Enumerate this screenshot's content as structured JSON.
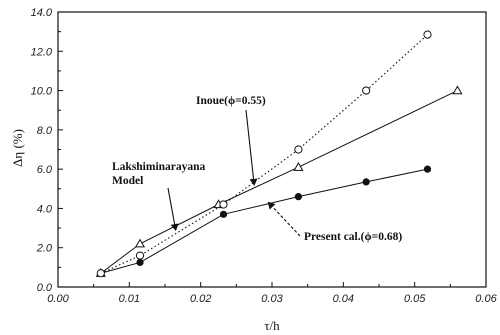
{
  "chart_data": {
    "type": "scatter",
    "xlabel": "τ/h",
    "ylabel": "Δη (%)",
    "xlim": [
      0.0,
      0.06
    ],
    "ylim": [
      0.0,
      14.0
    ],
    "x_ticks": [
      0.0,
      0.01,
      0.02,
      0.03,
      0.04,
      0.05,
      0.06
    ],
    "x_tick_labels": [
      "0.00",
      "0.01",
      "0.02",
      "0.03",
      "0.04",
      "0.05",
      "0.06"
    ],
    "y_ticks": [
      0,
      2,
      4,
      6,
      8,
      10,
      12,
      14
    ],
    "y_tick_labels": [
      "0.0",
      "2.0",
      "4.0",
      "6.0",
      "8.0",
      "10.0",
      "12.0",
      "14.0"
    ],
    "grid": false,
    "legend": "none",
    "series": [
      {
        "marker": "filled-circle",
        "line": "solid",
        "color": "#111111",
        "points": [
          [
            0.006,
            0.7
          ],
          [
            0.0115,
            1.25
          ],
          [
            0.0232,
            3.7
          ],
          [
            0.0337,
            4.6
          ],
          [
            0.0432,
            5.35
          ],
          [
            0.0518,
            6.0
          ]
        ]
      },
      {
        "marker": "open-triangle",
        "line": "solid",
        "color": "#111111",
        "points": [
          [
            0.006,
            0.7
          ],
          [
            0.0115,
            2.2
          ],
          [
            0.0225,
            4.2
          ],
          [
            0.0337,
            6.1
          ],
          [
            0.056,
            10.0
          ]
        ]
      },
      {
        "marker": "open-circle",
        "line": "dotted",
        "color": "#111111",
        "points": [
          [
            0.006,
            0.7
          ],
          [
            0.0115,
            1.6
          ],
          [
            0.0232,
            4.2
          ],
          [
            0.0337,
            7.0
          ],
          [
            0.0432,
            10.0
          ],
          [
            0.0518,
            12.85
          ]
        ]
      }
    ],
    "annotations": [
      {
        "lines": [
          "Inoue(",
          "ϕ",
          "=0.55)"
        ],
        "arrow_to": [
          0.0275,
          5.2
        ]
      },
      {
        "lines": [
          "Lakshiminarayana",
          "Model"
        ],
        "arrow_to": [
          0.0165,
          2.9
        ]
      },
      {
        "lines": [
          "Present cal.(",
          "ϕ",
          "=0.68)"
        ],
        "arrow_to": [
          0.0295,
          4.3
        ]
      }
    ]
  }
}
